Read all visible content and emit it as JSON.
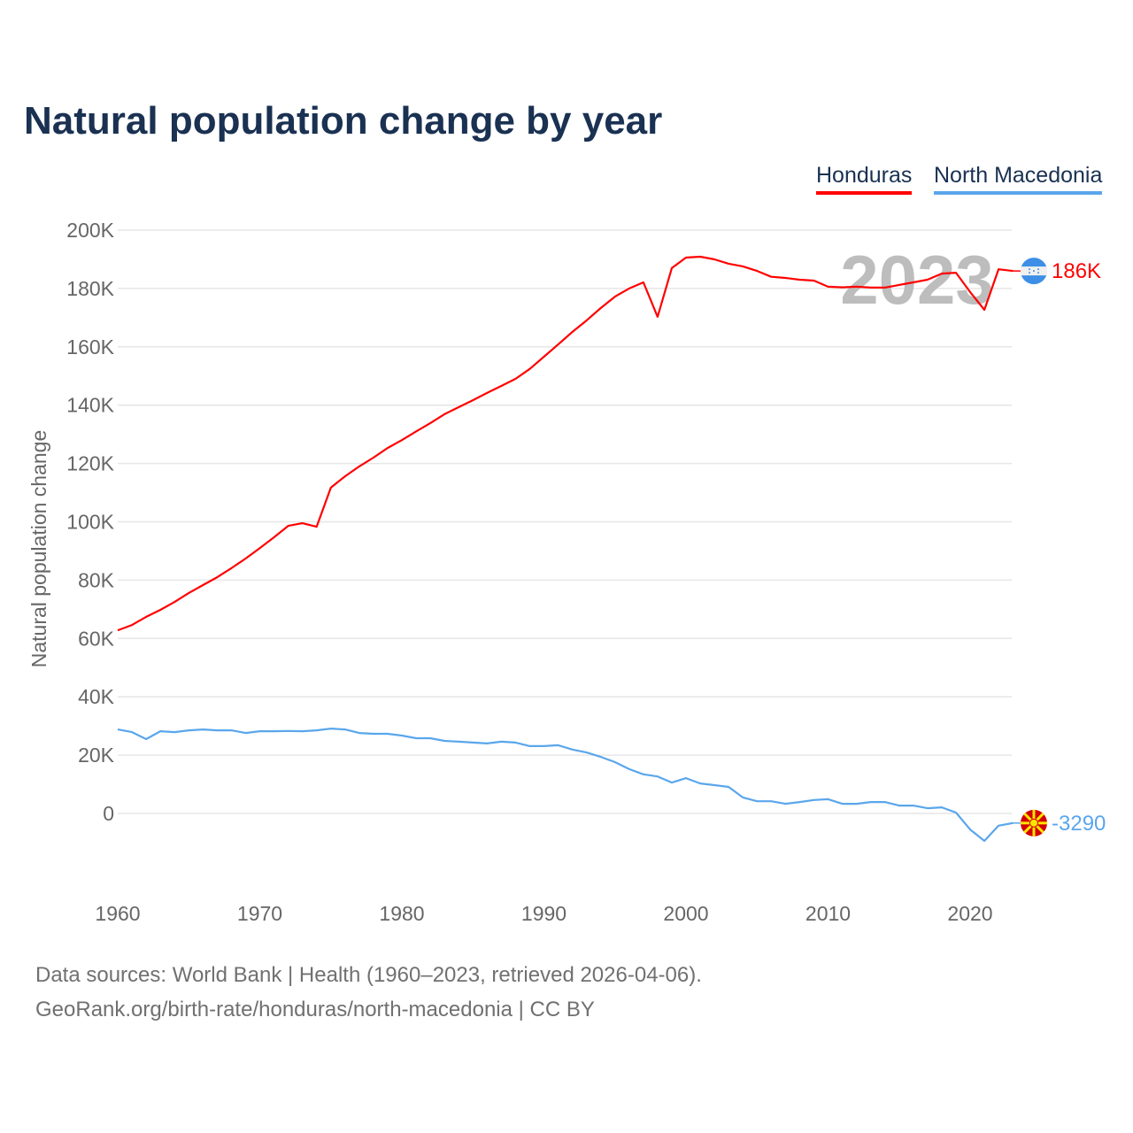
{
  "chart_data": {
    "type": "line",
    "title": "Natural population change by year",
    "xlabel": "",
    "ylabel": "Natural population change",
    "xlim": [
      1960,
      2023
    ],
    "ylim": [
      -20000,
      200000
    ],
    "x_ticks": [
      "1960",
      "1970",
      "1980",
      "1990",
      "2000",
      "2010",
      "2020"
    ],
    "y_ticks": [
      {
        "value": 0,
        "label": "0"
      },
      {
        "value": 20000,
        "label": "20K"
      },
      {
        "value": 40000,
        "label": "40K"
      },
      {
        "value": 60000,
        "label": "60K"
      },
      {
        "value": 80000,
        "label": "80K"
      },
      {
        "value": 100000,
        "label": "100K"
      },
      {
        "value": 120000,
        "label": "120K"
      },
      {
        "value": 140000,
        "label": "140K"
      },
      {
        "value": 160000,
        "label": "160K"
      },
      {
        "value": 180000,
        "label": "180K"
      },
      {
        "value": 200000,
        "label": "200K"
      }
    ],
    "grid": true,
    "legend_position": "top-right",
    "year_watermark": "2023",
    "x": [
      1960,
      1961,
      1962,
      1963,
      1964,
      1965,
      1966,
      1967,
      1968,
      1969,
      1970,
      1971,
      1972,
      1973,
      1974,
      1975,
      1976,
      1977,
      1978,
      1979,
      1980,
      1981,
      1982,
      1983,
      1984,
      1985,
      1986,
      1987,
      1988,
      1989,
      1990,
      1991,
      1992,
      1993,
      1994,
      1995,
      1996,
      1997,
      1998,
      1999,
      2000,
      2001,
      2002,
      2003,
      2004,
      2005,
      2006,
      2007,
      2008,
      2009,
      2010,
      2011,
      2012,
      2013,
      2014,
      2015,
      2016,
      2017,
      2018,
      2019,
      2020,
      2021,
      2022,
      2023
    ],
    "series": [
      {
        "name": "Honduras",
        "color": "#ff0000",
        "end_label": "186K",
        "flag": "honduras-flag",
        "values": [
          62800,
          64600,
          67400,
          69800,
          72500,
          75600,
          78300,
          81000,
          84100,
          87400,
          91000,
          94700,
          98600,
          99500,
          98300,
          111700,
          115600,
          119000,
          122000,
          125300,
          128000,
          131000,
          133800,
          136900,
          139300,
          141700,
          144200,
          146600,
          149000,
          152400,
          156600,
          160800,
          165100,
          169000,
          173300,
          177200,
          180000,
          182100,
          170300,
          187000,
          190600,
          190900,
          190000,
          188500,
          187600,
          186000,
          184000,
          183600,
          183000,
          182700,
          180600,
          180400,
          180600,
          180300,
          180300,
          181200,
          182100,
          183000,
          185100,
          185400,
          178800,
          172700,
          186600,
          186000
        ]
      },
      {
        "name": "North Macedonia",
        "color": "#5aa6ec",
        "end_label": "-3290",
        "flag": "north-macedonia-flag",
        "values": [
          28800,
          27900,
          25500,
          28200,
          27900,
          28500,
          28800,
          28500,
          28500,
          27600,
          28200,
          28200,
          28300,
          28200,
          28500,
          29100,
          28800,
          27600,
          27300,
          27300,
          26700,
          25800,
          25800,
          24900,
          24600,
          24300,
          24000,
          24600,
          24300,
          23100,
          23100,
          23400,
          21900,
          20900,
          19400,
          17600,
          15200,
          13400,
          12700,
          10600,
          12100,
          10300,
          9700,
          9100,
          5500,
          4200,
          4200,
          3300,
          3900,
          4600,
          4900,
          3300,
          3300,
          3900,
          3900,
          2700,
          2700,
          1800,
          2100,
          300,
          -5500,
          -9400,
          -4200,
          -3290
        ]
      }
    ]
  },
  "footer": {
    "line1": "Data sources: World Bank | Health (1960–2023, retrieved 2026-04-06).",
    "line2": "GeoRank.org/birth-rate/honduras/north-macedonia | CC BY"
  }
}
